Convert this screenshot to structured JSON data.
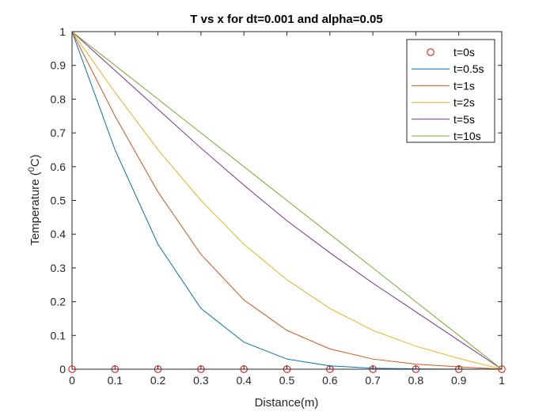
{
  "chart_data": {
    "type": "line",
    "title": "T vs x for dt=0.001 and alpha=0.05",
    "xlabel": "Distance(m)",
    "ylabel": "Temperature (",
    "ylabel_sup": "0",
    "ylabel_tail": "C)",
    "xlim": [
      0,
      1
    ],
    "ylim": [
      0,
      1
    ],
    "grid": false,
    "legend_position": "top-right",
    "x_ticks": [
      "0",
      "0.1",
      "0.2",
      "0.3",
      "0.4",
      "0.5",
      "0.6",
      "0.7",
      "0.8",
      "0.9",
      "1"
    ],
    "y_ticks": [
      "0",
      "0.1",
      "0.2",
      "0.3",
      "0.4",
      "0.5",
      "0.6",
      "0.7",
      "0.8",
      "0.9",
      "1"
    ],
    "x": [
      0,
      0.1,
      0.2,
      0.3,
      0.4,
      0.5,
      0.6,
      0.7,
      0.8,
      0.9,
      1.0
    ],
    "series": [
      {
        "name": "t=0s",
        "style": "markers",
        "color": "#ff0000",
        "values": [
          0,
          0,
          0,
          0,
          0,
          0,
          0,
          0,
          0,
          0,
          0
        ]
      },
      {
        "name": "t=0.5s",
        "style": "line",
        "color": "#0072bd",
        "values": [
          1.0,
          0.65,
          0.37,
          0.18,
          0.08,
          0.03,
          0.01,
          0.003,
          0.001,
          0.0003,
          0
        ]
      },
      {
        "name": "t=1s",
        "style": "line",
        "color": "#d95319",
        "values": [
          1.0,
          0.75,
          0.525,
          0.34,
          0.205,
          0.115,
          0.06,
          0.03,
          0.015,
          0.007,
          0
        ]
      },
      {
        "name": "t=2s",
        "style": "line",
        "color": "#edb120",
        "values": [
          1.0,
          0.82,
          0.65,
          0.5,
          0.37,
          0.265,
          0.18,
          0.115,
          0.068,
          0.032,
          0
        ]
      },
      {
        "name": "t=5s",
        "style": "line",
        "color": "#7e2f8e",
        "values": [
          1.0,
          0.885,
          0.77,
          0.655,
          0.545,
          0.44,
          0.345,
          0.255,
          0.17,
          0.085,
          0
        ]
      },
      {
        "name": "t=10s",
        "style": "line",
        "color": "#77ac30",
        "values": [
          1.0,
          0.9,
          0.8,
          0.7,
          0.6,
          0.5,
          0.4,
          0.3,
          0.2,
          0.1,
          0
        ]
      }
    ]
  }
}
